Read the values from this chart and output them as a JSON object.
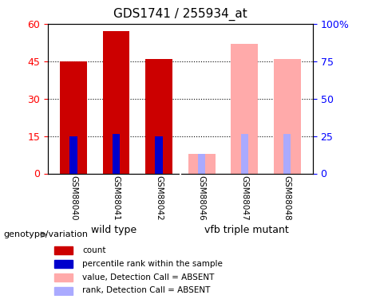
{
  "title": "GDS1741 / 255934_at",
  "categories": [
    "GSM88040",
    "GSM88041",
    "GSM88042",
    "GSM88046",
    "GSM88047",
    "GSM88048"
  ],
  "groups": [
    {
      "name": "wild type",
      "indices": [
        0,
        1,
        2
      ],
      "color": "#66ff66"
    },
    {
      "name": "vfb triple mutant",
      "indices": [
        3,
        4,
        5
      ],
      "color": "#66ff66"
    }
  ],
  "count_values": [
    45,
    57,
    46,
    null,
    null,
    null
  ],
  "rank_values": [
    15,
    16,
    15,
    null,
    null,
    null
  ],
  "absent_count_values": [
    null,
    null,
    null,
    8,
    52,
    46
  ],
  "absent_rank_values": [
    null,
    null,
    null,
    8,
    16,
    16
  ],
  "ylim_left": [
    0,
    60
  ],
  "ylim_right": [
    0,
    100
  ],
  "left_ticks": [
    0,
    15,
    30,
    45,
    60
  ],
  "right_ticks": [
    0,
    25,
    50,
    75,
    100
  ],
  "bar_width": 0.35,
  "count_color": "#cc0000",
  "rank_color": "#0000cc",
  "absent_count_color": "#ffaaaa",
  "absent_rank_color": "#aaaaff",
  "grid_color": "black",
  "bg_color": "#f0f0f0",
  "plot_bg": "white"
}
